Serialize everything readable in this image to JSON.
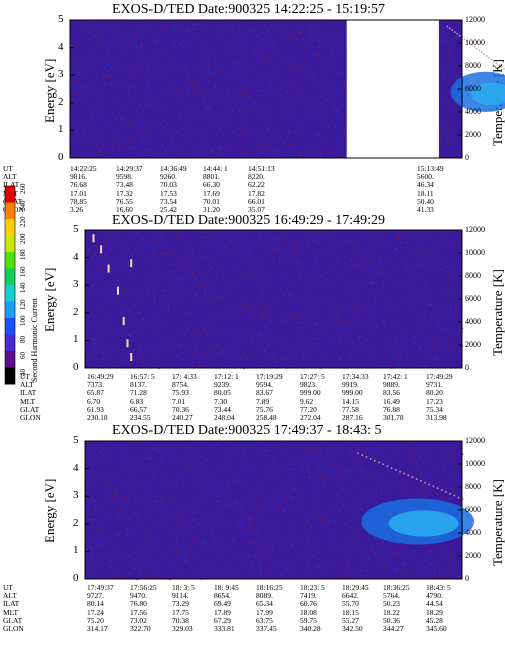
{
  "colors": {
    "background_noise": "#3a1a9a",
    "gap": "#ffffff",
    "feature_blue": "#1a6fe0",
    "feature_cyan": "#2aaaf0"
  },
  "colorbar": {
    "title": "Second Harmonic Current",
    "ticks": [
      "40",
      "60",
      "80",
      "100",
      "120",
      "140",
      "160",
      "180",
      "200",
      "220",
      "240",
      "260"
    ],
    "colors": [
      "#000000",
      "#5a1090",
      "#4a2ad8",
      "#1a50ff",
      "#1aa0ff",
      "#10d0d0",
      "#10d060",
      "#50e000",
      "#c8e800",
      "#ffd000",
      "#ff8000",
      "#e00000"
    ]
  },
  "chart_data": [
    {
      "type": "heatmap",
      "title": "EXOS-D/TED   Date:900325  14:22:25 - 15:19:57",
      "ylabel": "Energy [eV]",
      "ylabel_right": "Temperature [K]",
      "ylim": [
        0,
        5
      ],
      "ylim_right": [
        0,
        12000
      ],
      "yticks": [
        "0",
        "1",
        "2",
        "3",
        "4",
        "5"
      ],
      "yticks_right": [
        "0",
        "2000",
        "4000",
        "6000",
        "8000",
        "10000",
        "12000"
      ],
      "data_gap": {
        "from_ut": "14:58",
        "to_ut": "15:10"
      },
      "features": [
        {
          "kind": "temperature_points",
          "ut_range": [
            "15:11",
            "15:19"
          ],
          "temperature_range": [
            7500,
            11500
          ]
        },
        {
          "kind": "blue_enhancement",
          "ut_range": [
            "15:11",
            "15:19"
          ],
          "temperature_range": [
            4000,
            7500
          ]
        }
      ],
      "orbit": {
        "labels": [
          "UT",
          "ALT",
          "ILAT",
          "MLT",
          "GLAT",
          "GLON"
        ],
        "columns": [
          [
            "14:22:25",
            "9816.",
            "76.68",
            "17.01",
            "78.85",
            "3.26"
          ],
          [
            "14:29:37",
            "9598.",
            "73.48",
            "17.32",
            "76.55",
            "16.60"
          ],
          [
            "14:36:49",
            "9260.",
            "70.03",
            "17.53",
            "73.54",
            "25.42"
          ],
          [
            "14:44: 1",
            "8801.",
            "66.30",
            "17.69",
            "70.01",
            "31.20"
          ],
          [
            "14:51:13",
            "8220.",
            "62.22",
            "17.82",
            "66.01",
            "35.07"
          ],
          [
            "15:13:49",
            "5600.",
            "46.34",
            "18.11",
            "50.40",
            "41.33"
          ]
        ]
      }
    },
    {
      "type": "heatmap",
      "title": "EXOS-D/TED   Date:900325  16:49:29 - 17:49:29",
      "ylabel": "Energy [eV]",
      "ylabel_right": "Temperature [K]",
      "ylim": [
        0,
        5
      ],
      "ylim_right": [
        0,
        12000
      ],
      "yticks": [
        "0",
        "1",
        "2",
        "3",
        "4",
        "5"
      ],
      "yticks_right": [
        "0",
        "2000",
        "4000",
        "6000",
        "8000",
        "10000",
        "12000"
      ],
      "features": [
        {
          "kind": "descending_points",
          "points": [
            [
              0.02,
              4.7
            ],
            [
              0.04,
              4.3
            ],
            [
              0.06,
              3.6
            ],
            [
              0.085,
              2.8
            ],
            [
              0.1,
              1.7
            ],
            [
              0.11,
              0.9
            ],
            [
              0.12,
              0.4
            ],
            [
              0.12,
              3.8
            ]
          ]
        }
      ],
      "orbit": {
        "labels": [
          "UT",
          "ALT",
          "ILAT",
          "MLT",
          "GLAT",
          "GLON"
        ],
        "columns": [
          [
            "16:49:29",
            "7373.",
            "65.87",
            "6.70",
            "61.93",
            "230.18"
          ],
          [
            "16:57: 5",
            "8137.",
            "71.28",
            "6.83",
            "66.57",
            "234.55"
          ],
          [
            "17: 4:33",
            "8754.",
            "75.93",
            "7.01",
            "70.36",
            "240.27"
          ],
          [
            "17:12: 1",
            "9239.",
            "80.05",
            "7.30",
            "73.44",
            "248.04"
          ],
          [
            "17:19:29",
            "9594.",
            "83.67",
            "7.89",
            "75.76",
            "258.48"
          ],
          [
            "17:27: 5",
            "9823.",
            "999.00",
            "9.62",
            "77.20",
            "272.04"
          ],
          [
            "17:34:33",
            "9919.",
            "999.00",
            "14.15",
            "77.58",
            "287.16"
          ],
          [
            "17:42: 1",
            "9889.",
            "83.56",
            "16.49",
            "76.88",
            "301.78"
          ],
          [
            "17:49:29",
            "9731.",
            "80.20",
            "17.23",
            "75.34",
            "313.98"
          ]
        ]
      }
    },
    {
      "type": "heatmap",
      "title": "EXOS-D/TED   Date:900325  17:49:37 - 18:43: 5",
      "ylabel": "Energy [eV]",
      "ylabel_right": "Temperature [K]",
      "ylim": [
        0,
        5
      ],
      "ylim_right": [
        0,
        12000
      ],
      "yticks": [
        "0",
        "1",
        "2",
        "3",
        "4",
        "5"
      ],
      "yticks_right": [
        "0",
        "2000",
        "4000",
        "6000",
        "8000",
        "10000",
        "12000"
      ],
      "features": [
        {
          "kind": "temperature_points",
          "ut_range": [
            "18:28",
            "18:43"
          ],
          "temperature_range": [
            7000,
            11000
          ]
        },
        {
          "kind": "blue_enhancement",
          "ut_range": [
            "18:28",
            "18:43"
          ],
          "temperature_range": [
            3000,
            7000
          ]
        }
      ],
      "orbit": {
        "labels": [
          "UT",
          "ALT",
          "ILAT",
          "MLT",
          "GLAT",
          "GLON"
        ],
        "columns": [
          [
            "17:49:37",
            "9727.",
            "80.14",
            "17.24",
            "75.20",
            "314.17"
          ],
          [
            "17:56:25",
            "9470.",
            "76.80",
            "17.56",
            "73.02",
            "322.70"
          ],
          [
            "18: 3: 5",
            "9114.",
            "73.29",
            "17.75",
            "70.38",
            "329.03"
          ],
          [
            "18: 9:45",
            "8654.",
            "69.49",
            "17.89",
            "67.29",
            "333.81"
          ],
          [
            "18:16:25",
            "8089.",
            "65.34",
            "17.99",
            "63.75",
            "337.45"
          ],
          [
            "18:23: 5",
            "7419.",
            "60.76",
            "18.08",
            "59.75",
            "340.28"
          ],
          [
            "18:29:45",
            "6642.",
            "55.70",
            "18.15",
            "55.27",
            "342.50"
          ],
          [
            "18:36:25",
            "5764.",
            "50.23",
            "18.22",
            "50.36",
            "344.27"
          ],
          [
            "18:43: 5",
            "4790.",
            "44.54",
            "18.29",
            "45.28",
            "345.60"
          ]
        ]
      }
    }
  ]
}
